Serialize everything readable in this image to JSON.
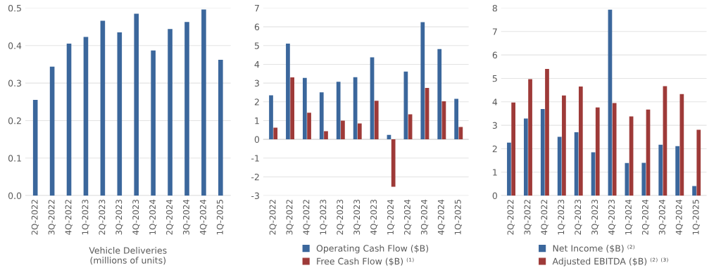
{
  "chart_data": [
    {
      "type": "bar",
      "categories": [
        "2Q-2022",
        "3Q-2022",
        "4Q-2022",
        "1Q-2023",
        "2Q-2023",
        "3Q-2023",
        "4Q-2023",
        "1Q-2024",
        "2Q-2024",
        "3Q-2024",
        "4Q-2024",
        "1Q-2025"
      ],
      "series": [
        {
          "color": "#3b679c",
          "values": [
            0.255,
            0.344,
            0.405,
            0.423,
            0.466,
            0.435,
            0.485,
            0.387,
            0.444,
            0.463,
            0.496,
            0.362
          ]
        }
      ],
      "xlabel": "Vehicle Deliveries\n(millions of units)",
      "ylim": [
        0,
        0.5
      ],
      "yticks": [
        {
          "value": 0,
          "label": "0.0"
        },
        0.1,
        0.2,
        0.3,
        0.4,
        0.5
      ],
      "grid": "y",
      "legend": false
    },
    {
      "type": "bar",
      "categories": [
        "2Q-2022",
        "3Q-2022",
        "4Q-2022",
        "1Q-2023",
        "2Q-2023",
        "3Q-2023",
        "4Q-2023",
        "1Q-2024",
        "2Q-2024",
        "3Q-2024",
        "4Q-2024",
        "1Q-2025"
      ],
      "series": [
        {
          "name": "Operating Cash Flow ($B)",
          "color": "#3b679c",
          "values": [
            2.35,
            5.1,
            3.28,
            2.51,
            3.07,
            3.31,
            4.37,
            0.24,
            3.61,
            6.25,
            4.81,
            2.16
          ]
        },
        {
          "name": "Free Cash Flow ($B) ⁽¹⁾",
          "color": "#9e3a38",
          "values": [
            0.62,
            3.3,
            1.42,
            0.44,
            1.0,
            0.85,
            2.06,
            -2.53,
            1.34,
            2.74,
            2.03,
            0.66
          ]
        }
      ],
      "ylim": [
        -3,
        7
      ],
      "yticks": [
        -3,
        -2,
        -1,
        0,
        1,
        2,
        3,
        4,
        5,
        6,
        7
      ],
      "grid": "y",
      "legend": "bottom"
    },
    {
      "type": "bar",
      "categories": [
        "2Q-2022",
        "3Q-2022",
        "4Q-2022",
        "1Q-2023",
        "2Q-2023",
        "3Q-2023",
        "4Q-2023",
        "1Q-2024",
        "2Q-2024",
        "3Q-2024",
        "4Q-2024",
        "1Q-2025"
      ],
      "series": [
        {
          "name": "Net Income ($B) ⁽²⁾",
          "color": "#3b679c",
          "values": [
            2.26,
            3.29,
            3.69,
            2.51,
            2.7,
            1.85,
            7.93,
            1.39,
            1.4,
            2.17,
            2.11,
            0.41
          ]
        },
        {
          "name": "Adjusted EBITDA ($B) ⁽²⁾ ⁽³⁾",
          "color": "#9e3a38",
          "values": [
            3.97,
            4.97,
            5.4,
            4.27,
            4.65,
            3.76,
            3.95,
            3.38,
            3.67,
            4.67,
            4.33,
            2.81
          ]
        }
      ],
      "ylim": [
        0,
        8
      ],
      "yticks": [
        0,
        1,
        2,
        3,
        4,
        5,
        6,
        7,
        8
      ],
      "grid": "y",
      "legend": "bottom"
    }
  ]
}
